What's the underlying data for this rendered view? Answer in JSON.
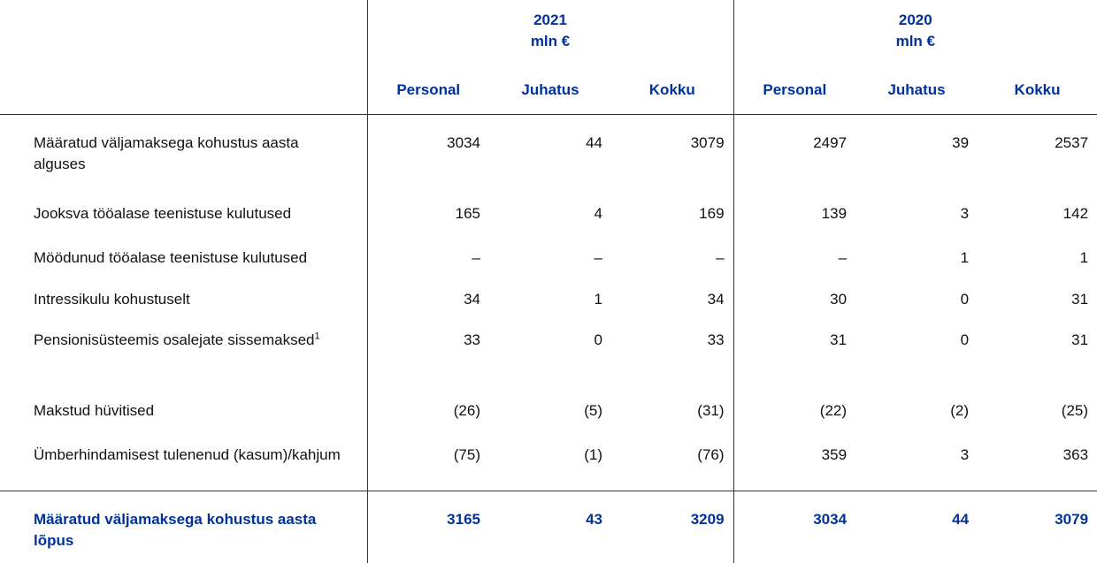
{
  "header": {
    "years": [
      {
        "year": "2021",
        "unit": "mln €"
      },
      {
        "year": "2020",
        "unit": "mln €"
      }
    ],
    "columns": [
      "Personal",
      "Juhatus",
      "Kokku",
      "Personal",
      "Juhatus",
      "Kokku"
    ]
  },
  "rows": [
    {
      "label": "Määratud väljamaksega kohustus aasta alguses",
      "values": [
        "3034",
        "44",
        "3079",
        "2497",
        "39",
        "2537"
      ]
    },
    {
      "label": "Jooksva tööalase teenistuse kulutused",
      "values": [
        "165",
        "4",
        "169",
        "139",
        "3",
        "142"
      ]
    },
    {
      "label": "Möödunud tööalase teenistuse kulutused",
      "values": [
        "–",
        "–",
        "–",
        "–",
        "1",
        "1"
      ]
    },
    {
      "label": "Intressikulu kohustuselt",
      "values": [
        "34",
        "1",
        "34",
        "30",
        "0",
        "31"
      ]
    },
    {
      "label": "Pensionisüsteemis osalejate sissemaksed",
      "footnote": "1",
      "values": [
        "33",
        "0",
        "33",
        "31",
        "0",
        "31"
      ]
    },
    {
      "label": "Makstud hüvitised",
      "values": [
        "(26)",
        "(5)",
        "(31)",
        "(22)",
        "(2)",
        "(25)"
      ]
    },
    {
      "label": "Ümberhindamisest tulenenud (kasum)/kahjum",
      "values": [
        "(75)",
        "(1)",
        "(76)",
        "359",
        "3",
        "363"
      ]
    }
  ],
  "total": {
    "label": "Määratud väljamaksega kohustus aasta lõpus",
    "values": [
      "3165",
      "43",
      "3209",
      "3034",
      "44",
      "3079"
    ]
  }
}
